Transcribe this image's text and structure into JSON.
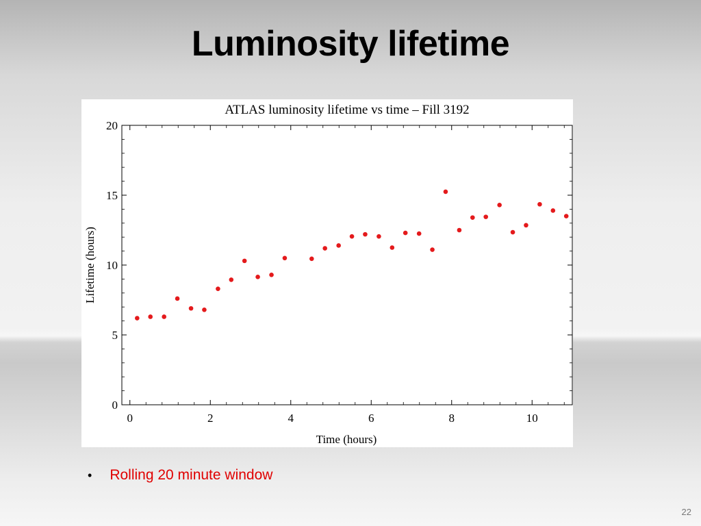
{
  "slide": {
    "title": "Luminosity lifetime",
    "bullets": [
      "Rolling 20 minute window"
    ],
    "page_number": "22"
  },
  "colors": {
    "marker": "#e41a1c",
    "bullet_text": "#e00000"
  },
  "chart_data": {
    "type": "scatter",
    "title": "ATLAS luminosity lifetime vs time – Fill 3192",
    "xlabel": "Time (hours)",
    "ylabel": "Lifetime (hours)",
    "xlim": [
      -0.2,
      11.0
    ],
    "ylim": [
      0,
      20
    ],
    "x_ticks": [
      0,
      2,
      4,
      6,
      8,
      10
    ],
    "y_ticks": [
      0,
      5,
      10,
      15,
      20
    ],
    "grid": false,
    "legend": "none",
    "points": [
      {
        "x": 0.18,
        "y": 6.2
      },
      {
        "x": 0.51,
        "y": 6.3
      },
      {
        "x": 0.85,
        "y": 6.3
      },
      {
        "x": 1.18,
        "y": 7.6
      },
      {
        "x": 1.52,
        "y": 6.9
      },
      {
        "x": 1.85,
        "y": 6.8
      },
      {
        "x": 2.19,
        "y": 8.3
      },
      {
        "x": 2.52,
        "y": 8.95
      },
      {
        "x": 2.85,
        "y": 10.3
      },
      {
        "x": 3.18,
        "y": 9.15
      },
      {
        "x": 3.52,
        "y": 9.3
      },
      {
        "x": 3.85,
        "y": 10.5
      },
      {
        "x": 4.52,
        "y": 10.45
      },
      {
        "x": 4.85,
        "y": 11.2
      },
      {
        "x": 5.19,
        "y": 11.4
      },
      {
        "x": 5.52,
        "y": 12.05
      },
      {
        "x": 5.85,
        "y": 12.2
      },
      {
        "x": 6.19,
        "y": 12.05
      },
      {
        "x": 6.52,
        "y": 11.25
      },
      {
        "x": 6.85,
        "y": 12.3
      },
      {
        "x": 7.19,
        "y": 12.25
      },
      {
        "x": 7.52,
        "y": 11.1
      },
      {
        "x": 7.85,
        "y": 15.25
      },
      {
        "x": 8.19,
        "y": 12.5
      },
      {
        "x": 8.52,
        "y": 13.4
      },
      {
        "x": 8.85,
        "y": 13.45
      },
      {
        "x": 9.19,
        "y": 14.3
      },
      {
        "x": 9.52,
        "y": 12.35
      },
      {
        "x": 9.85,
        "y": 12.85
      },
      {
        "x": 10.19,
        "y": 14.35
      },
      {
        "x": 10.52,
        "y": 13.9
      },
      {
        "x": 10.85,
        "y": 13.5
      }
    ]
  }
}
